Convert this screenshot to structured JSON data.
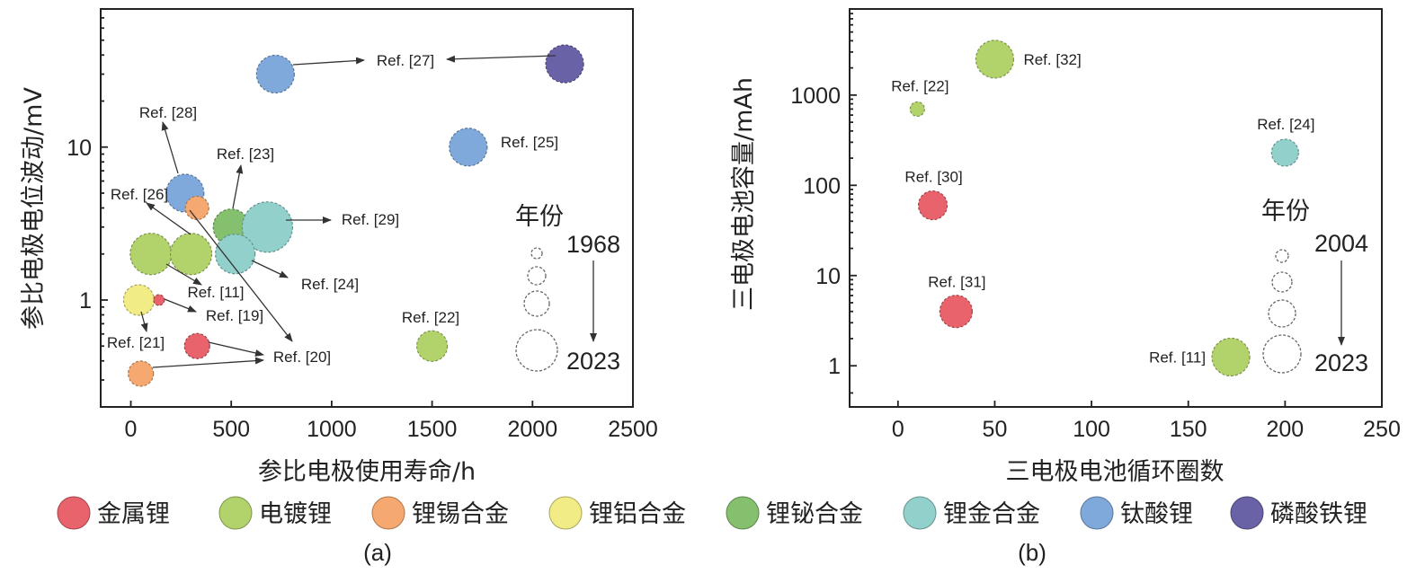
{
  "colors": {
    "金属锂": "#e8636b",
    "电镀锂": "#b2d36b",
    "锂锡合金": "#f5a970",
    "锂铝合金": "#f2ec86",
    "锂铋合金": "#84c06e",
    "锂金合金": "#92d1cb",
    "钛酸锂": "#7fa9da",
    "磷酸铁锂": "#6a62a6"
  },
  "legend": [
    "金属锂",
    "电镀锂",
    "锂锡合金",
    "锂铝合金",
    "锂铋合金",
    "锂金合金",
    "钛酸锂",
    "磷酸铁锂"
  ],
  "chart_data": [
    {
      "panel": "(a)",
      "type": "scatter",
      "xlabel": "参比电极使用寿命/h",
      "ylabel": "参比电极电位波动/mV",
      "xlim": [
        -150,
        2500
      ],
      "ylim_log": [
        0.2,
        80
      ],
      "xticks": [
        0,
        500,
        1000,
        1500,
        2000,
        2500
      ],
      "yticks": [
        1,
        10
      ],
      "year_legend": {
        "title": "年份",
        "start": "1968",
        "end": "2023"
      },
      "points": [
        {
          "x": 720,
          "y": 30,
          "cat": "钛酸锂",
          "r": 21
        },
        {
          "x": 2160,
          "y": 35,
          "cat": "磷酸铁锂",
          "r": 21
        },
        {
          "x": 1680,
          "y": 10,
          "cat": "钛酸锂",
          "r": 21
        },
        {
          "x": 270,
          "y": 5,
          "cat": "钛酸锂",
          "r": 21
        },
        {
          "x": 330,
          "y": 4,
          "cat": "锂锡合金",
          "r": 13
        },
        {
          "x": 500,
          "y": 3,
          "cat": "锂铋合金",
          "r": 20
        },
        {
          "x": 680,
          "y": 3,
          "cat": "锂金合金",
          "r": 28
        },
        {
          "x": 520,
          "y": 2,
          "cat": "锂金合金",
          "r": 22
        },
        {
          "x": 100,
          "y": 2,
          "cat": "电镀锂",
          "r": 23
        },
        {
          "x": 300,
          "y": 2,
          "cat": "电镀锂",
          "r": 23
        },
        {
          "x": 40,
          "y": 1,
          "cat": "锂铝合金",
          "r": 17
        },
        {
          "x": 140,
          "y": 1,
          "cat": "金属锂",
          "r": 6
        },
        {
          "x": 330,
          "y": 0.5,
          "cat": "金属锂",
          "r": 14
        },
        {
          "x": 50,
          "y": 0.33,
          "cat": "锂锡合金",
          "r": 14
        },
        {
          "x": 1500,
          "y": 0.5,
          "cat": "电镀锂",
          "r": 17
        }
      ],
      "annotations": [
        {
          "text": "Ref. [27]"
        },
        {
          "text": "Ref. [25]"
        },
        {
          "text": "Ref. [28]"
        },
        {
          "text": "Ref. [23]"
        },
        {
          "text": "Ref. [26]"
        },
        {
          "text": "Ref. [29]"
        },
        {
          "text": "Ref. [11]"
        },
        {
          "text": "Ref. [24]"
        },
        {
          "text": "Ref. [19]"
        },
        {
          "text": "Ref. [21]"
        },
        {
          "text": "Ref. [22]"
        },
        {
          "text": "Ref. [20]"
        }
      ]
    },
    {
      "panel": "(b)",
      "type": "scatter",
      "xlabel": "三电极电池循环圈数",
      "ylabel": "三电极电池容量/mAh",
      "xlim": [
        -25,
        250
      ],
      "ylim_log": [
        0.35,
        9000
      ],
      "xticks": [
        0,
        50,
        100,
        150,
        200,
        250
      ],
      "yticks": [
        1,
        10,
        100,
        1000
      ],
      "year_legend": {
        "title": "年份",
        "start": "2004",
        "end": "2023"
      },
      "points": [
        {
          "x": 50,
          "y": 2500,
          "cat": "电镀锂",
          "r": 21,
          "label": "Ref. [32]"
        },
        {
          "x": 10,
          "y": 700,
          "cat": "电镀锂",
          "r": 8,
          "label": "Ref. [22]"
        },
        {
          "x": 200,
          "y": 230,
          "cat": "锂金合金",
          "r": 15,
          "label": "Ref. [24]"
        },
        {
          "x": 18,
          "y": 60,
          "cat": "金属锂",
          "r": 16,
          "label": "Ref. [30]"
        },
        {
          "x": 30,
          "y": 4,
          "cat": "金属锂",
          "r": 18,
          "label": "Ref. [31]"
        },
        {
          "x": 172,
          "y": 1.25,
          "cat": "电镀锂",
          "r": 21,
          "label": "Ref. [11]"
        }
      ]
    }
  ]
}
